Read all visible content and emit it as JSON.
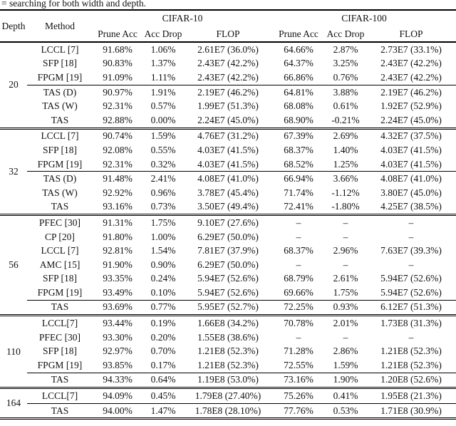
{
  "caption": "= searching for both width and depth.",
  "table": {
    "columns": {
      "depth": "Depth",
      "method": "Method"
    },
    "groups": [
      {
        "label": "CIFAR-10",
        "subcolumns": [
          "Prune Acc",
          "Acc Drop",
          "FLOP"
        ]
      },
      {
        "label": "CIFAR-100",
        "subcolumns": [
          "Prune Acc",
          "Acc Drop",
          "FLOP"
        ]
      }
    ],
    "blocks": [
      {
        "depth": "20",
        "method_rows": [
          {
            "cells": [
              "LCCL [7]",
              "91.68%",
              "1.06%",
              "2.61E7 (36.0%)",
              "64.66%",
              "2.87%",
              "2.73E7 (33.1%)"
            ]
          },
          {
            "cells": [
              "SFP [18]",
              "90.83%",
              "1.37%",
              "2.43E7 (42.2%)",
              "64.37%",
              "3.25%",
              "2.43E7 (42.2%)"
            ]
          },
          {
            "cells": [
              "FPGM [19]",
              "91.09%",
              "1.11%",
              "2.43E7 (42.2%)",
              "66.86%",
              "0.76%",
              "2.43E7 (42.2%)"
            ]
          }
        ],
        "tas_rows": [
          {
            "cells": [
              "TAS (D)",
              "90.97%",
              "1.91%",
              "2.19E7 (46.2%)",
              "64.81%",
              "3.88%",
              "2.19E7 (46.2%)"
            ]
          },
          {
            "cells": [
              "TAS (W)",
              "92.31%",
              "0.57%",
              "1.99E7 (51.3%)",
              "68.08%",
              "0.61%",
              "1.92E7 (52.9%)"
            ]
          },
          {
            "cells": [
              "TAS",
              "92.88%",
              "0.00%",
              "2.24E7 (45.0%)",
              "68.90%",
              "-0.21%",
              "2.24E7 (45.0%)"
            ]
          }
        ]
      },
      {
        "depth": "32",
        "method_rows": [
          {
            "cells": [
              "LCCL [7]",
              "90.74%",
              "1.59%",
              "4.76E7 (31.2%)",
              "67.39%",
              "2.69%",
              "4.32E7 (37.5%)"
            ]
          },
          {
            "cells": [
              "SFP [18]",
              "92.08%",
              "0.55%",
              "4.03E7 (41.5%)",
              "68.37%",
              "1.40%",
              "4.03E7 (41.5%)"
            ]
          },
          {
            "cells": [
              "FPGM [19]",
              "92.31%",
              "0.32%",
              "4.03E7 (41.5%)",
              "68.52%",
              "1.25%",
              "4.03E7 (41.5%)"
            ]
          }
        ],
        "tas_rows": [
          {
            "cells": [
              "TAS (D)",
              "91.48%",
              "2.41%",
              "4.08E7 (41.0%)",
              "66.94%",
              "3.66%",
              "4.08E7 (41.0%)"
            ]
          },
          {
            "cells": [
              "TAS (W)",
              "92.92%",
              "0.96%",
              "3.78E7 (45.4%)",
              "71.74%",
              "-1.12%",
              "3.80E7 (45.0%)"
            ]
          },
          {
            "cells": [
              "TAS",
              "93.16%",
              "0.73%",
              "3.50E7 (49.4%)",
              "72.41%",
              "-1.80%",
              "4.25E7 (38.5%)"
            ]
          }
        ]
      },
      {
        "depth": "56",
        "method_rows": [
          {
            "cells": [
              "PFEC [30]",
              "91.31%",
              "1.75%",
              "9.10E7 (27.6%)",
              "–",
              "–",
              "–"
            ]
          },
          {
            "cells": [
              "CP [20]",
              "91.80%",
              "1.00%",
              "6.29E7 (50.0%)",
              "–",
              "–",
              "–"
            ]
          },
          {
            "cells": [
              "LCCL [7]",
              "92.81%",
              "1.54%",
              "7.81E7 (37.9%)",
              "68.37%",
              "2.96%",
              "7.63E7 (39.3%)"
            ]
          },
          {
            "cells": [
              "AMC [15]",
              "91.90%",
              "0.90%",
              "6.29E7 (50.0%)",
              "–",
              "–",
              "–"
            ]
          },
          {
            "cells": [
              "SFP [18]",
              "93.35%",
              "0.24%",
              "5.94E7 (52.6%)",
              "68.79%",
              "2.61%",
              "5.94E7 (52.6%)"
            ]
          },
          {
            "cells": [
              "FPGM [19]",
              "93.49%",
              "0.10%",
              "5.94E7 (52.6%)",
              "69.66%",
              "1.75%",
              "5.94E7 (52.6%)"
            ]
          }
        ],
        "tas_rows": [
          {
            "cells": [
              "TAS",
              "93.69%",
              "0.77%",
              "5.95E7 (52.7%)",
              "72.25%",
              "0.93%",
              "6.12E7 (51.3%)"
            ]
          }
        ]
      },
      {
        "depth": "110",
        "method_rows": [
          {
            "cells": [
              "LCCL[7]",
              "93.44%",
              "0.19%",
              "1.66E8 (34.2%)",
              "70.78%",
              "2.01%",
              "1.73E8 (31.3%)"
            ]
          },
          {
            "cells": [
              "PFEC [30]",
              "93.30%",
              "0.20%",
              "1.55E8 (38.6%)",
              "–",
              "–",
              "–"
            ]
          },
          {
            "cells": [
              "SFP [18]",
              "92.97%",
              "0.70%",
              "1.21E8 (52.3%)",
              "71.28%",
              "2.86%",
              "1.21E8 (52.3%)"
            ]
          },
          {
            "cells": [
              "FPGM [19]",
              "93.85%",
              "0.17%",
              "1.21E8 (52.3%)",
              "72.55%",
              "1.59%",
              "1.21E8 (52.3%)"
            ]
          }
        ],
        "tas_rows": [
          {
            "cells": [
              "TAS",
              "94.33%",
              "0.64%",
              "1.19E8 (53.0%)",
              "73.16%",
              "1.90%",
              "1.20E8 (52.6%)"
            ]
          }
        ]
      },
      {
        "depth": "164",
        "method_rows": [
          {
            "cells": [
              "LCCL[7]",
              "94.09%",
              "0.45%",
              "1.79E8 (27.40%)",
              "75.26%",
              "0.41%",
              "1.95E8 (21.3%)"
            ]
          }
        ],
        "tas_rows": [
          {
            "cells": [
              "TAS",
              "94.00%",
              "1.47%",
              "1.78E8 (28.10%)",
              "77.76%",
              "0.53%",
              "1.71E8 (30.9%)"
            ]
          }
        ]
      }
    ]
  }
}
